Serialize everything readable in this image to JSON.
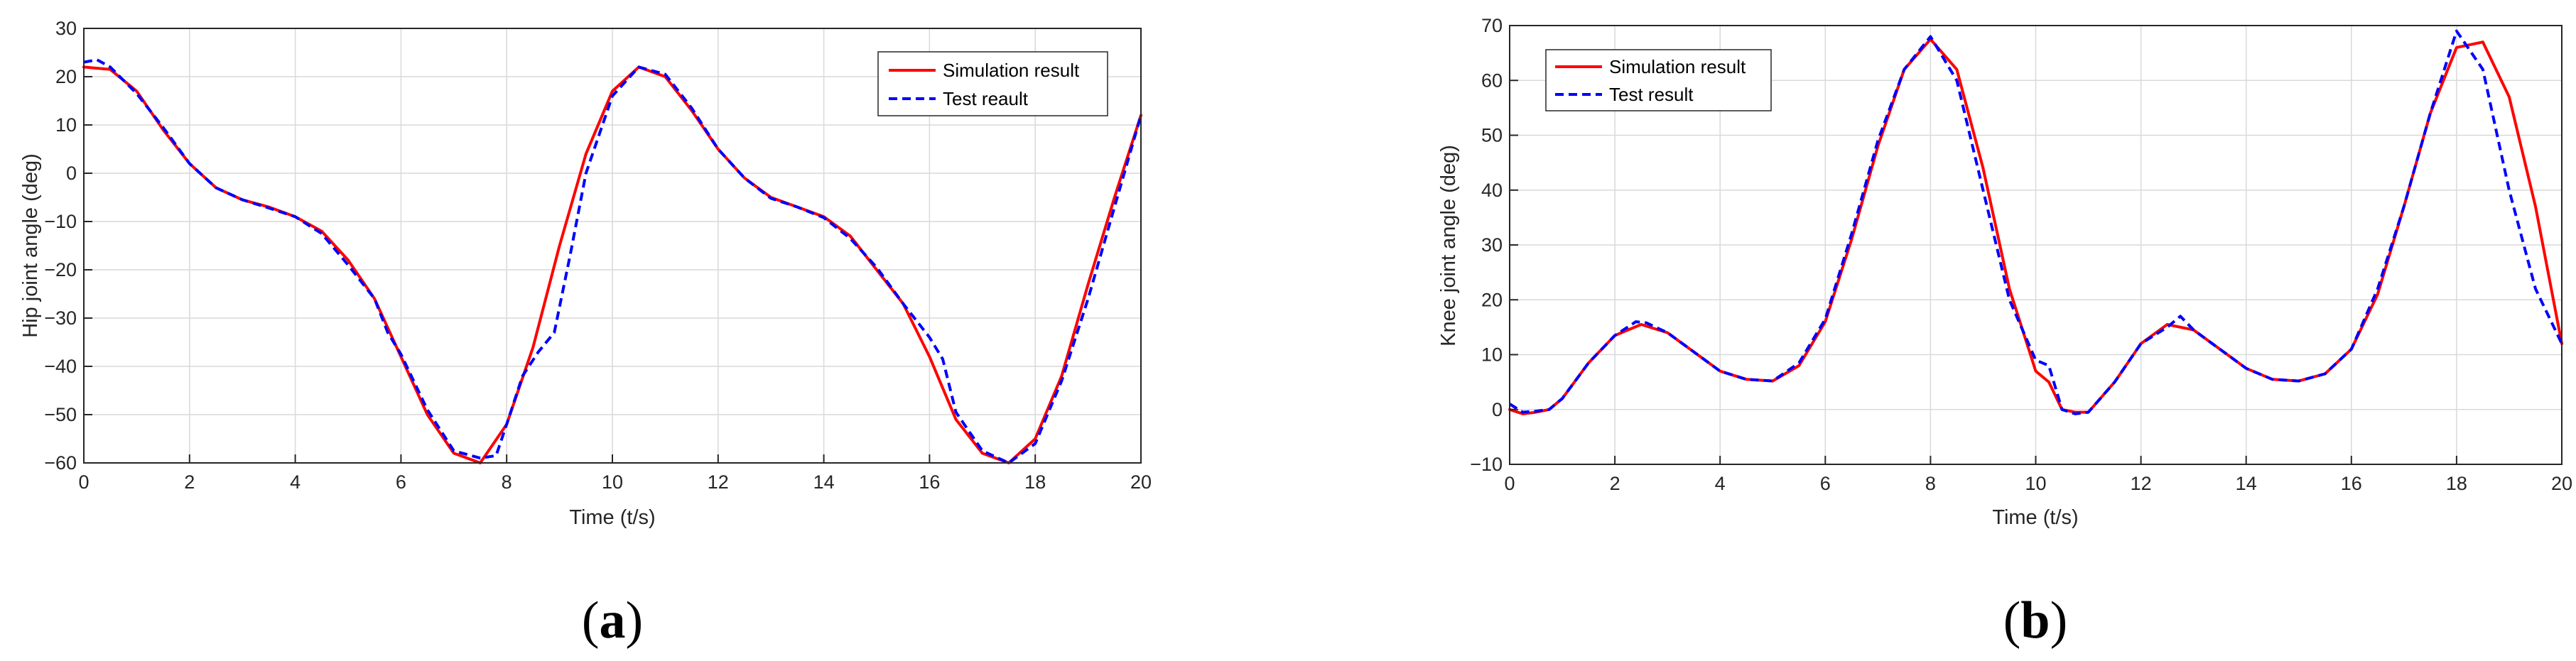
{
  "colors": {
    "simulation": "#ff0000",
    "test": "#0000ff",
    "axes": "#262626",
    "grid": "#d9d9d9"
  },
  "panels": [
    {
      "open": "(",
      "letter": "a",
      "close": ")"
    },
    {
      "open": "(",
      "letter": "b",
      "close": ")"
    }
  ],
  "chart_data": [
    {
      "type": "line",
      "xlabel": "Time (t/s)",
      "ylabel": "Hip joint angle (deg)",
      "xlim": [
        0,
        20
      ],
      "ylim": [
        -60,
        30
      ],
      "xticks": [
        0,
        2,
        4,
        6,
        8,
        10,
        12,
        14,
        16,
        18,
        20
      ],
      "yticks": [
        -60,
        -50,
        -40,
        -30,
        -20,
        -10,
        0,
        10,
        20,
        30
      ],
      "grid": true,
      "legend_position": "top-right",
      "series": [
        {
          "name": "Simulation result",
          "style": "solid",
          "x": [
            0,
            0.5,
            1,
            1.5,
            2,
            2.5,
            3,
            3.5,
            4,
            4.5,
            5,
            5.5,
            6,
            6.5,
            7,
            7.5,
            8,
            8.5,
            9,
            9.5,
            10,
            10.5,
            11,
            11.5,
            12,
            12.5,
            13,
            13.5,
            14,
            14.5,
            15,
            15.5,
            16,
            16.5,
            17,
            17.5,
            18,
            18.5,
            19,
            19.5,
            20
          ],
          "y": [
            22,
            21.5,
            17,
            9,
            2,
            -3,
            -5.5,
            -7,
            -9,
            -12,
            -18,
            -26,
            -38,
            -50,
            -58,
            -60,
            -52,
            -36,
            -15,
            4,
            17,
            22,
            20,
            13,
            5,
            -1,
            -5,
            -7,
            -9,
            -13,
            -20,
            -27,
            -38,
            -51,
            -58,
            -60,
            -55,
            -42,
            -23,
            -5,
            12
          ]
        },
        {
          "name": "Test reault",
          "style": "dashed",
          "x": [
            0,
            0.25,
            0.5,
            1,
            1.5,
            2,
            2.5,
            3,
            3.5,
            4,
            4.5,
            5,
            5.5,
            5.75,
            6,
            6.5,
            7,
            7.5,
            7.8,
            8,
            8.3,
            8.6,
            8.9,
            9.2,
            9.5,
            10,
            10.5,
            11,
            11.5,
            12,
            12.5,
            13,
            13.5,
            14,
            14.5,
            15,
            15.5,
            16,
            16.25,
            16.5,
            17,
            17.5,
            17.75,
            18,
            18.5,
            19,
            19.5,
            20
          ],
          "y": [
            23,
            23.5,
            22,
            16.5,
            9.5,
            2,
            -3,
            -5.5,
            -7.2,
            -9,
            -12.5,
            -19,
            -26,
            -33,
            -37.5,
            -49,
            -57.5,
            -59,
            -58.5,
            -52,
            -42,
            -37,
            -33,
            -17,
            0,
            16,
            22,
            20.5,
            13.5,
            5,
            -1,
            -5.2,
            -7,
            -9.2,
            -13.5,
            -19.5,
            -27,
            -34,
            -38.5,
            -49.5,
            -57.5,
            -60,
            -58,
            -56,
            -43,
            -26,
            -7,
            12
          ]
        }
      ]
    },
    {
      "type": "line",
      "xlabel": "Time (t/s)",
      "ylabel": "Knee joint angle (deg)",
      "xlim": [
        0,
        20
      ],
      "ylim": [
        -10,
        70
      ],
      "xticks": [
        0,
        2,
        4,
        6,
        8,
        10,
        12,
        14,
        16,
        18,
        20
      ],
      "yticks": [
        -10,
        0,
        10,
        20,
        30,
        40,
        50,
        60,
        70
      ],
      "grid": true,
      "legend_position": "top-left",
      "series": [
        {
          "name": "Simulation result",
          "style": "solid",
          "x": [
            0,
            0.25,
            0.5,
            0.75,
            1,
            1.5,
            2,
            2.5,
            3,
            3.5,
            4,
            4.5,
            5,
            5.5,
            6,
            6.5,
            7,
            7.5,
            8,
            8.5,
            9,
            9.5,
            10,
            10.25,
            10.5,
            10.75,
            11,
            11.5,
            12,
            12.5,
            13,
            13.5,
            14,
            14.5,
            15,
            15.5,
            16,
            16.5,
            17,
            17.5,
            18,
            18.5,
            19,
            19.5,
            20
          ],
          "y": [
            0,
            -0.8,
            -0.5,
            0,
            2,
            8.5,
            13.5,
            15.5,
            14,
            10.5,
            7,
            5.5,
            5.2,
            8,
            16,
            31,
            48,
            62,
            67.5,
            62,
            44,
            22,
            7,
            5,
            0,
            -0.5,
            -0.5,
            5,
            12,
            15.5,
            14.5,
            11,
            7.5,
            5.5,
            5.2,
            6.5,
            11,
            21,
            37,
            54,
            66,
            67,
            57,
            37,
            12
          ]
        },
        {
          "name": "Test result",
          "style": "dashed",
          "x": [
            0,
            0.25,
            0.5,
            0.75,
            1,
            1.5,
            2,
            2.4,
            2.6,
            3,
            3.5,
            4,
            4.5,
            5,
            5.5,
            6,
            6.5,
            7,
            7.5,
            8,
            8.5,
            9,
            9.5,
            10,
            10.25,
            10.5,
            10.75,
            11,
            11.5,
            12,
            12.5,
            12.75,
            13,
            13.5,
            14,
            14.5,
            15,
            15.5,
            16,
            16.5,
            17,
            17.5,
            18,
            18.5,
            19,
            19.5,
            20
          ],
          "y": [
            1,
            -0.5,
            -0.3,
            0,
            2,
            8.5,
            13.5,
            16,
            15.8,
            14,
            10.5,
            7,
            5.5,
            5.2,
            8.5,
            16.5,
            32,
            49,
            62,
            68,
            60,
            40,
            20,
            9,
            8,
            0,
            -0.8,
            -0.5,
            5,
            12,
            15,
            17,
            14.5,
            11,
            7.5,
            5.5,
            5.2,
            6.5,
            11,
            22,
            37,
            54,
            69,
            62,
            40,
            22,
            12
          ]
        }
      ]
    }
  ]
}
